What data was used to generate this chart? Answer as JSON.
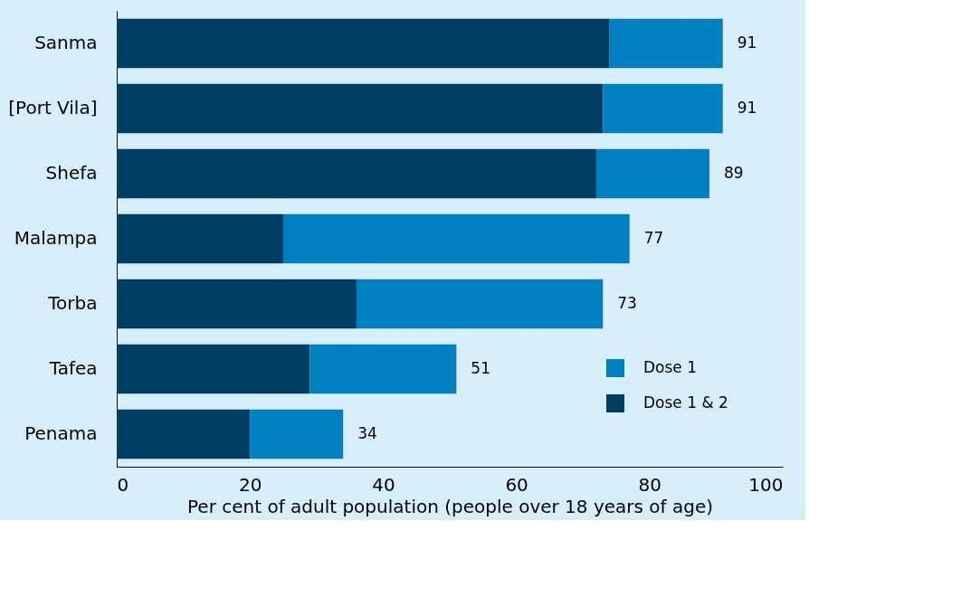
{
  "chart_data": {
    "type": "bar",
    "orientation": "horizontal",
    "stacked": true,
    "categories": [
      "Sanma",
      "[Port Vila]",
      "Shefa",
      "Malampa",
      "Torba",
      "Tafea",
      "Penama"
    ],
    "series": [
      {
        "name": "Dose 1 & 2",
        "color": "#003f63",
        "values": [
          74,
          73,
          72,
          25,
          36,
          29,
          20
        ]
      },
      {
        "name": "Dose 1",
        "color": "#0080c0",
        "values": [
          17,
          18,
          17,
          52,
          37,
          22,
          14
        ]
      }
    ],
    "totals": [
      "91",
      "91",
      "89",
      "77",
      "73",
      "51",
      "34"
    ],
    "xlabel": "Per cent of adult population (people over 18 years of age)",
    "xlim": [
      0,
      100
    ],
    "xticks": [
      0,
      20,
      40,
      60,
      80,
      100
    ],
    "legend": "bottom right",
    "grid": false
  }
}
